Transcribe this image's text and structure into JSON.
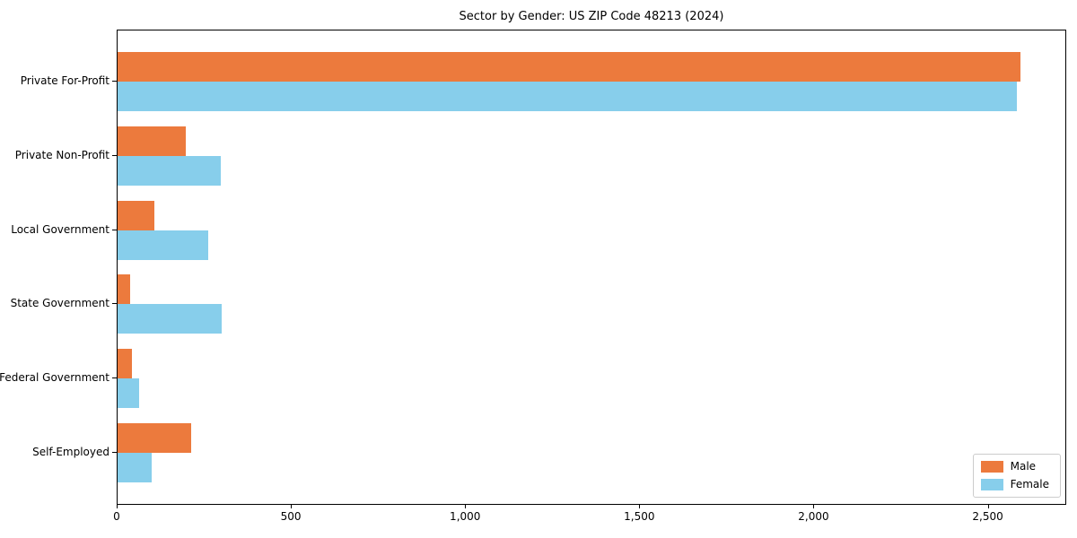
{
  "chart_data": {
    "type": "bar",
    "orientation": "horizontal",
    "title": "Sector by Gender: US ZIP Code 48213 (2024)",
    "categories": [
      "Private For-Profit",
      "Private Non-Profit",
      "Local Government",
      "State Government",
      "Federal Government",
      "Self-Employed"
    ],
    "series": [
      {
        "name": "Male",
        "color": "#ec7a3d",
        "values": [
          2590,
          197,
          105,
          36,
          40,
          212
        ]
      },
      {
        "name": "Female",
        "color": "#87ceeb",
        "values": [
          2580,
          295,
          260,
          298,
          62,
          97
        ]
      }
    ],
    "xlabel": "",
    "ylabel": "",
    "xlim": [
      0,
      2720
    ],
    "xticks": {
      "values": [
        0,
        500,
        1000,
        1500,
        2000,
        2500
      ],
      "labels": [
        "0",
        "500",
        "1,000",
        "1,500",
        "2,000",
        "2,500"
      ]
    },
    "legend": {
      "position": "lower right",
      "entries": [
        "Male",
        "Female"
      ]
    },
    "grid": false,
    "plot_border_color": "#000000",
    "background_color": "#ffffff"
  }
}
